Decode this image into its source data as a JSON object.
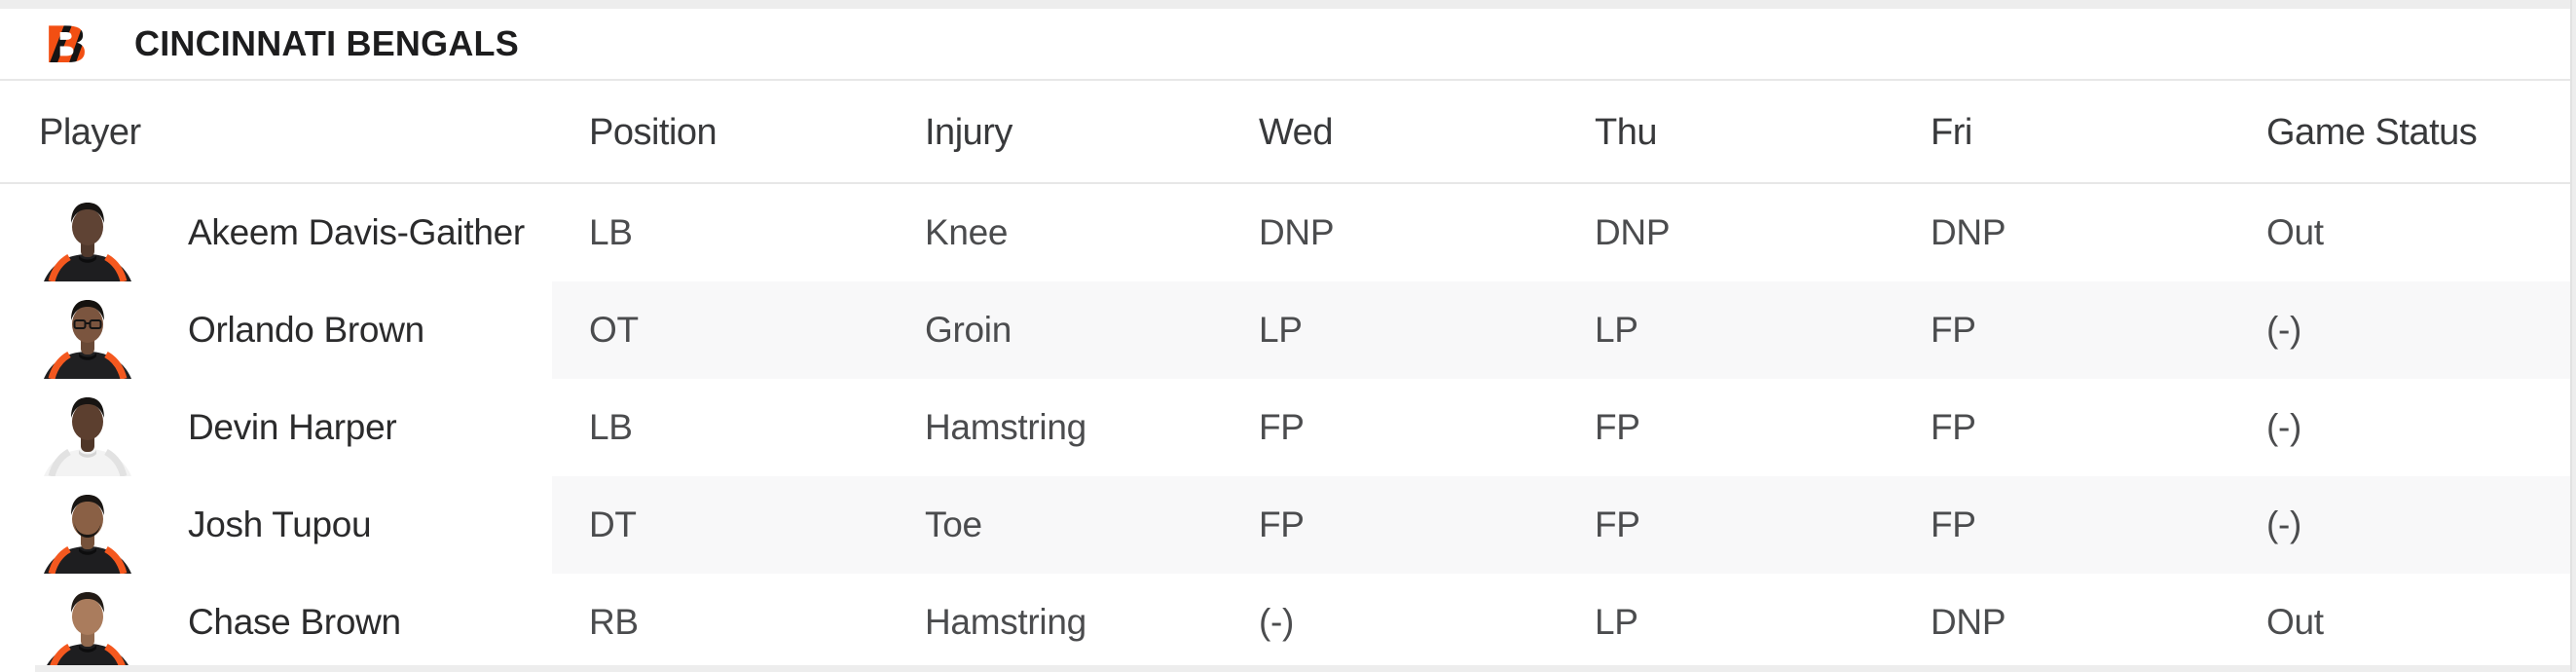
{
  "team": {
    "name": "CINCINNATI BENGALS",
    "logo": "bengals-striped-b-logo",
    "primary_color": "#f24f13",
    "secondary_color": "#141414"
  },
  "table": {
    "columns": [
      "Player",
      "Position",
      "Injury",
      "Wed",
      "Thu",
      "Fri",
      "Game Status"
    ],
    "rows": [
      {
        "player": "Akeem Davis-Gaither",
        "position": "LB",
        "injury": "Knee",
        "wed": "DNP",
        "thu": "DNP",
        "fri": "DNP",
        "game_status": "Out",
        "avatar": {
          "skin": "#5f4334",
          "hair": "#171412",
          "jersey": "#1e1e20",
          "stripe": "#f4581f",
          "collar": "#0d0d0e",
          "glasses": false,
          "beard": false
        }
      },
      {
        "player": "Orlando Brown",
        "position": "OT",
        "injury": "Groin",
        "wed": "LP",
        "thu": "LP",
        "fri": "FP",
        "game_status": "(-)",
        "avatar": {
          "skin": "#7b553f",
          "hair": "#15120f",
          "jersey": "#202022",
          "stripe": "#f4581f",
          "collar": "#0d0d0e",
          "glasses": true,
          "beard": false
        }
      },
      {
        "player": "Devin Harper",
        "position": "LB",
        "injury": "Hamstring",
        "wed": "FP",
        "thu": "FP",
        "fri": "FP",
        "game_status": "(-)",
        "avatar": {
          "skin": "#5c3f2f",
          "hair": "#171412",
          "jersey": "#f3f3f3",
          "stripe": "#e2e2e2",
          "collar": "#d5d5d5",
          "glasses": false,
          "beard": false
        }
      },
      {
        "player": "Josh Tupou",
        "position": "DT",
        "injury": "Toe",
        "wed": "FP",
        "thu": "FP",
        "fri": "FP",
        "game_status": "(-)",
        "avatar": {
          "skin": "#8a6045",
          "hair": "#1a1613",
          "jersey": "#1e1e20",
          "stripe": "#f4581f",
          "collar": "#0d0d0e",
          "glasses": false,
          "beard": true
        }
      },
      {
        "player": "Chase Brown",
        "position": "RB",
        "injury": "Hamstring",
        "wed": "(-)",
        "thu": "LP",
        "fri": "DNP",
        "game_status": "Out",
        "avatar": {
          "skin": "#aa7c5d",
          "hair": "#221b16",
          "jersey": "#1e1e20",
          "stripe": "#f4581f",
          "collar": "#0d0d0e",
          "glasses": false,
          "beard": false
        }
      }
    ]
  },
  "colors": {
    "row_stripe": "#f8f8f9",
    "divider": "#e7e7e7",
    "page_edge": "#ededed",
    "header_text": "#38393b",
    "value_text": "#4b4c4e",
    "name_text": "#2b2b2c"
  }
}
